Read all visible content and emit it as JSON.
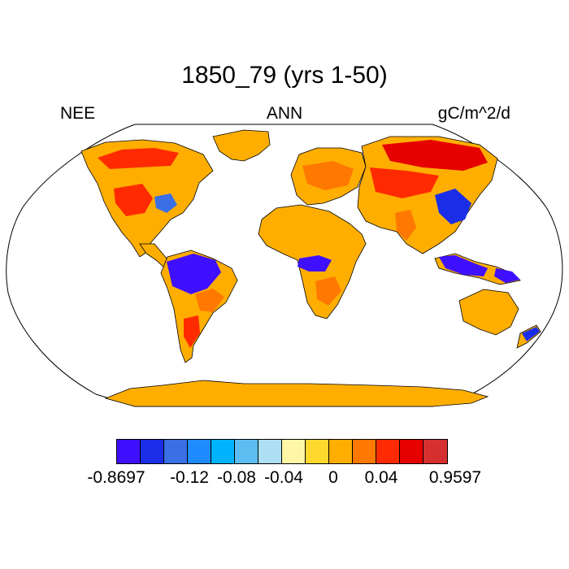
{
  "title": "1850_79 (yrs 1-50)",
  "left_label": "NEE",
  "center_label": "ANN",
  "right_label": "gC/m^2/d",
  "colorbar": {
    "colors": [
      "#3f0fff",
      "#1a2ee8",
      "#3a6fe6",
      "#1e8cff",
      "#00b3ff",
      "#5cbef0",
      "#aedff5",
      "#fff7a6",
      "#ffd82e",
      "#ffae00",
      "#ff7800",
      "#ff2a00",
      "#e60000",
      "#d62f2f"
    ],
    "labels": [
      "-0.8697",
      "-0.12",
      "-0.08",
      "-0.04",
      "0",
      "0.04",
      "0.9597"
    ]
  },
  "map": {
    "projection": "Robinson",
    "land_default_color": "#ffae00",
    "ocean_color": "#ffffff"
  }
}
